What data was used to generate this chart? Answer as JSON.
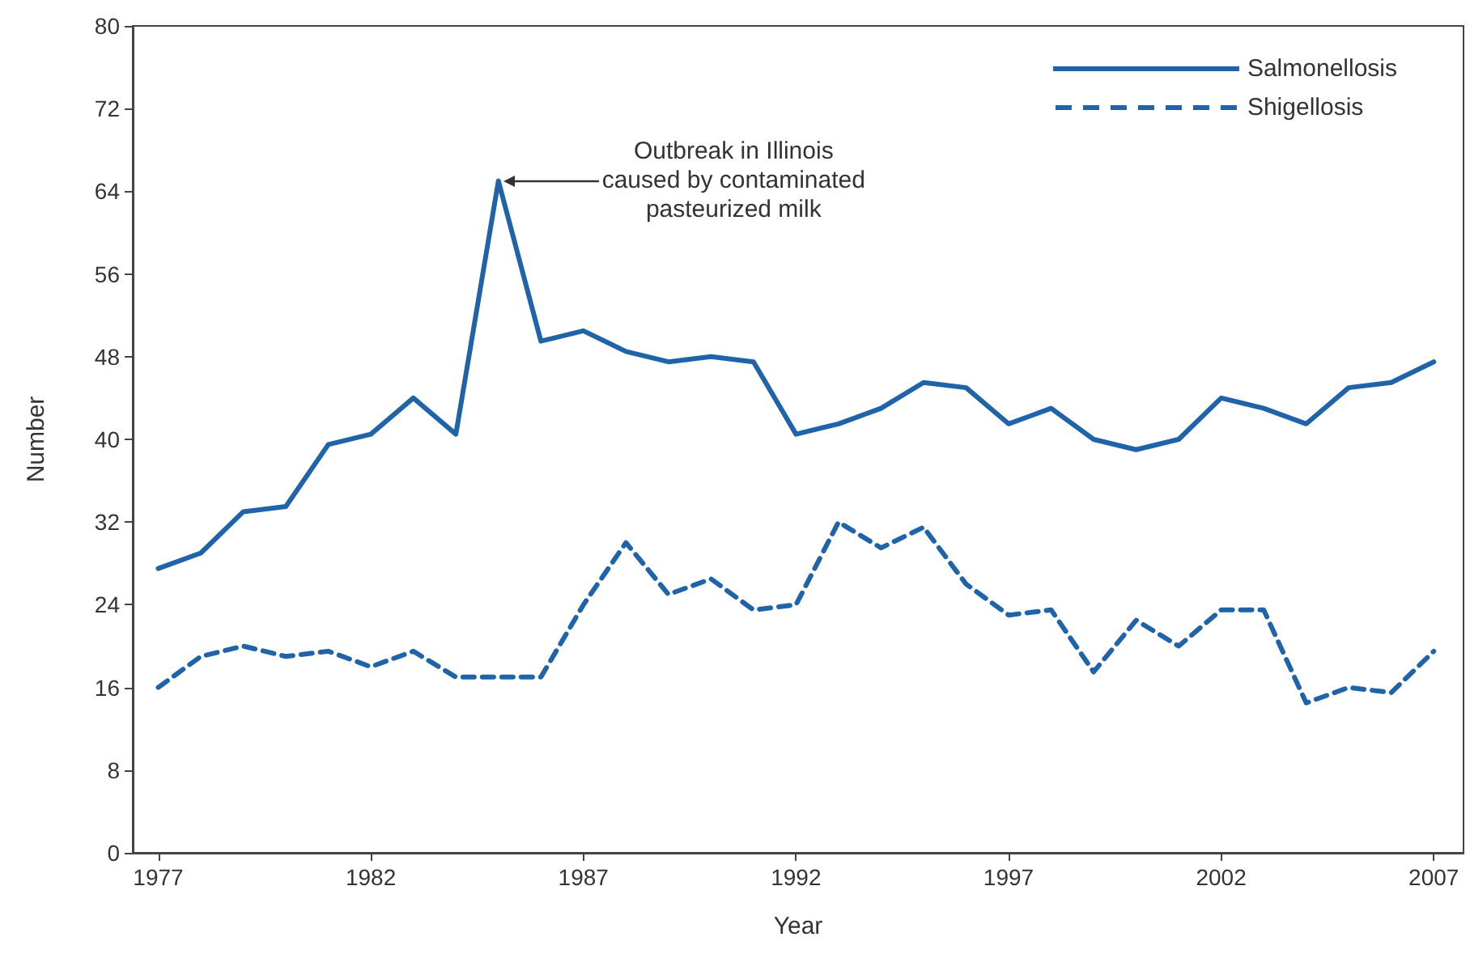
{
  "chart_data": {
    "type": "line",
    "xlabel": "Year",
    "ylabel": "Number",
    "x": [
      1977,
      1978,
      1979,
      1980,
      1981,
      1982,
      1983,
      1984,
      1985,
      1986,
      1987,
      1988,
      1989,
      1990,
      1991,
      1992,
      1993,
      1994,
      1995,
      1996,
      1997,
      1998,
      1999,
      2000,
      2001,
      2002,
      2003,
      2004,
      2005,
      2006,
      2007
    ],
    "series": [
      {
        "name": "Salmonellosis",
        "color": "#1f63a8",
        "line_style": "solid",
        "values": [
          27.5,
          29,
          33,
          33.5,
          39.5,
          40.5,
          44,
          40.5,
          65,
          49.5,
          50.5,
          48.5,
          47.5,
          48,
          47.5,
          40.5,
          41.5,
          43,
          45.5,
          45,
          41.5,
          43,
          40,
          39,
          40,
          44,
          43,
          41.5,
          45,
          45.5,
          47.5
        ]
      },
      {
        "name": "Shigellosis",
        "color": "#1f63a8",
        "line_style": "dashed",
        "values": [
          16,
          19,
          20,
          19,
          19.5,
          18,
          19.5,
          17,
          17,
          17,
          24,
          30,
          25,
          26.5,
          23.5,
          24,
          32,
          29.5,
          31.5,
          26,
          23,
          23.5,
          17.5,
          22.5,
          20,
          23.5,
          23.5,
          14.5,
          16,
          15.5,
          19.5
        ]
      }
    ],
    "xlim": [
      1976.4,
      2007.7
    ],
    "xticks": [
      1977,
      1982,
      1987,
      1992,
      1997,
      2002,
      2007
    ],
    "ylim": [
      0,
      80
    ],
    "yticks": [
      0,
      8,
      16,
      24,
      32,
      40,
      48,
      56,
      64,
      72,
      80
    ],
    "grid": false,
    "legend": "top right",
    "marker": "none",
    "annotations": [
      {
        "text": "Outbreak in Illinois\ncaused by contaminated\npasteurized milk",
        "x": 1985,
        "y": 65
      }
    ]
  }
}
